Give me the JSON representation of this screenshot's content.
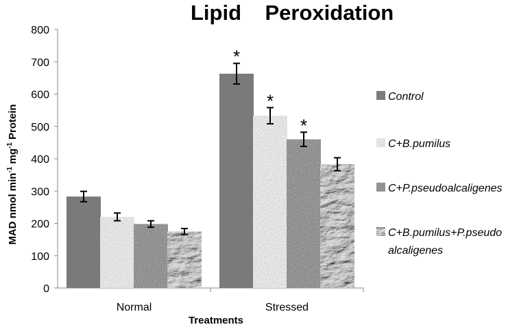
{
  "chart_data": {
    "type": "bar",
    "title": "Lipid    Peroxidation",
    "xlabel": "Treatments",
    "ylabel": {
      "parts": [
        "MAD nmol min",
        "-1",
        " mg",
        "-1",
        " Protein"
      ]
    },
    "ylim": [
      0,
      800
    ],
    "yticks": [
      "0",
      "100",
      "200",
      "300",
      "400",
      "500",
      "600",
      "700",
      "800"
    ],
    "categories": [
      "Normal",
      "Stressed"
    ],
    "series": [
      {
        "name": "Control",
        "values": [
          283,
          663
        ],
        "errors": [
          16,
          32
        ],
        "sig": [
          "",
          "*"
        ],
        "color": "#7a7a7a"
      },
      {
        "name": "C+B.pumilus",
        "values": [
          220,
          533
        ],
        "errors": [
          12,
          25
        ],
        "sig": [
          "",
          "*"
        ],
        "color": "#ececec"
      },
      {
        "name": "C+P.pseudoalcaligenes",
        "values": [
          198,
          460
        ],
        "errors": [
          10,
          22
        ],
        "sig": [
          "",
          "*"
        ],
        "color": "#9d9d9d"
      },
      {
        "name": "C+B.pumilus+P.pseudo alcaligenes",
        "values": [
          175,
          383
        ],
        "errors": [
          9,
          20
        ],
        "sig": [
          "",
          ""
        ],
        "color": "#8a8a8a"
      }
    ],
    "legend": {
      "position": "right",
      "labels": [
        [
          "Control"
        ],
        [
          "C+B.pumilus"
        ],
        [
          "C+P.pseudoalcaligenes"
        ],
        [
          "C+B.pumilus+P.pseudo",
          "alcaligenes"
        ]
      ]
    },
    "grid": false
  }
}
